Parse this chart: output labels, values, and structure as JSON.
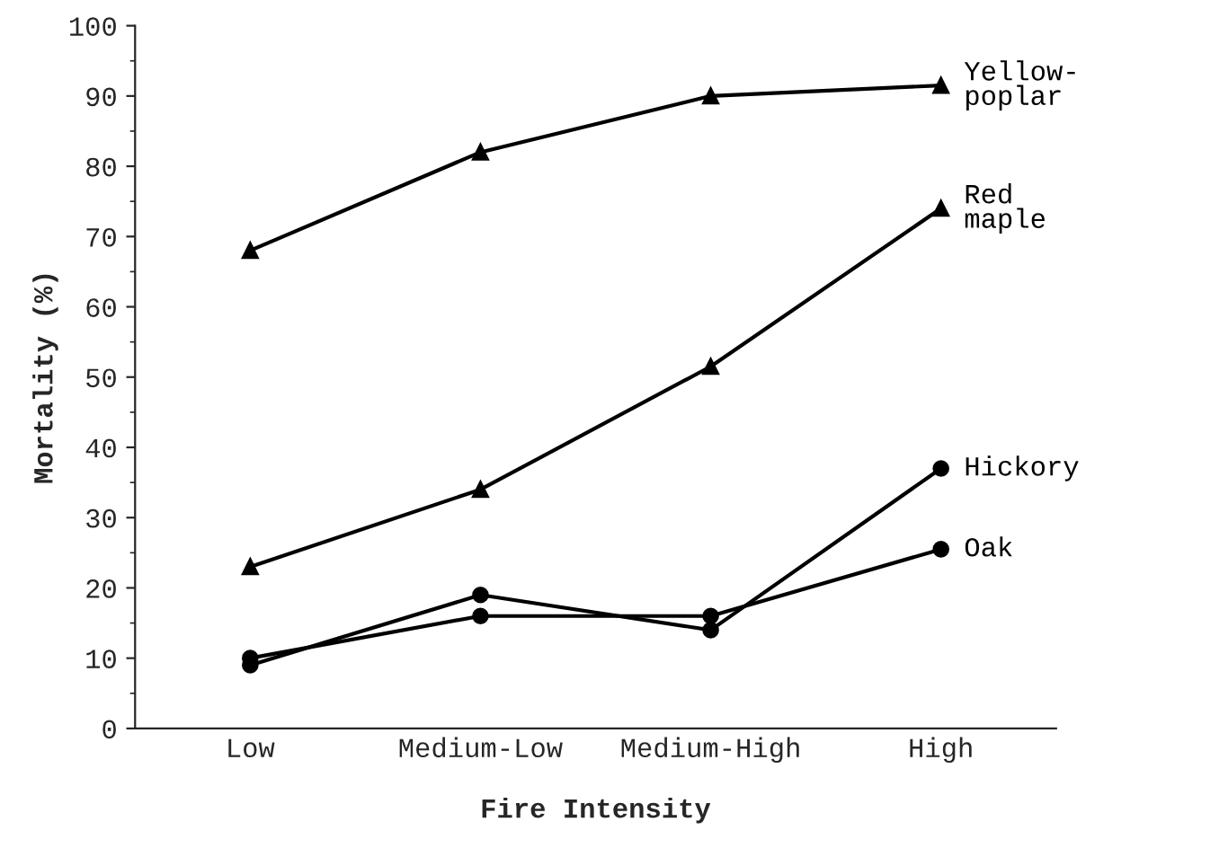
{
  "chart_data": {
    "type": "line",
    "xlabel": "Fire Intensity",
    "ylabel": "Mortality (%)",
    "categories": [
      "Low",
      "Medium-Low",
      "Medium-High",
      "High"
    ],
    "series": [
      {
        "name": "Yellow-\npoplar",
        "color": "#000000",
        "marker": "triangle",
        "values": [
          68,
          82,
          90,
          91.5
        ]
      },
      {
        "name": "Red\nmaple",
        "color": "#000000",
        "marker": "triangle",
        "values": [
          23,
          34,
          51.5,
          74
        ]
      },
      {
        "name": "Hickory",
        "color": "#000000",
        "marker": "circle",
        "values": [
          9,
          19,
          14,
          37
        ]
      },
      {
        "name": "Oak",
        "color": "#000000",
        "marker": "circle",
        "values": [
          10,
          16,
          16,
          25.5
        ]
      }
    ],
    "ylim": [
      0,
      100
    ],
    "yticks": [
      0,
      10,
      20,
      30,
      40,
      50,
      60,
      70,
      80,
      90,
      100
    ],
    "grid": false,
    "legend": false,
    "line_style": "solid"
  }
}
